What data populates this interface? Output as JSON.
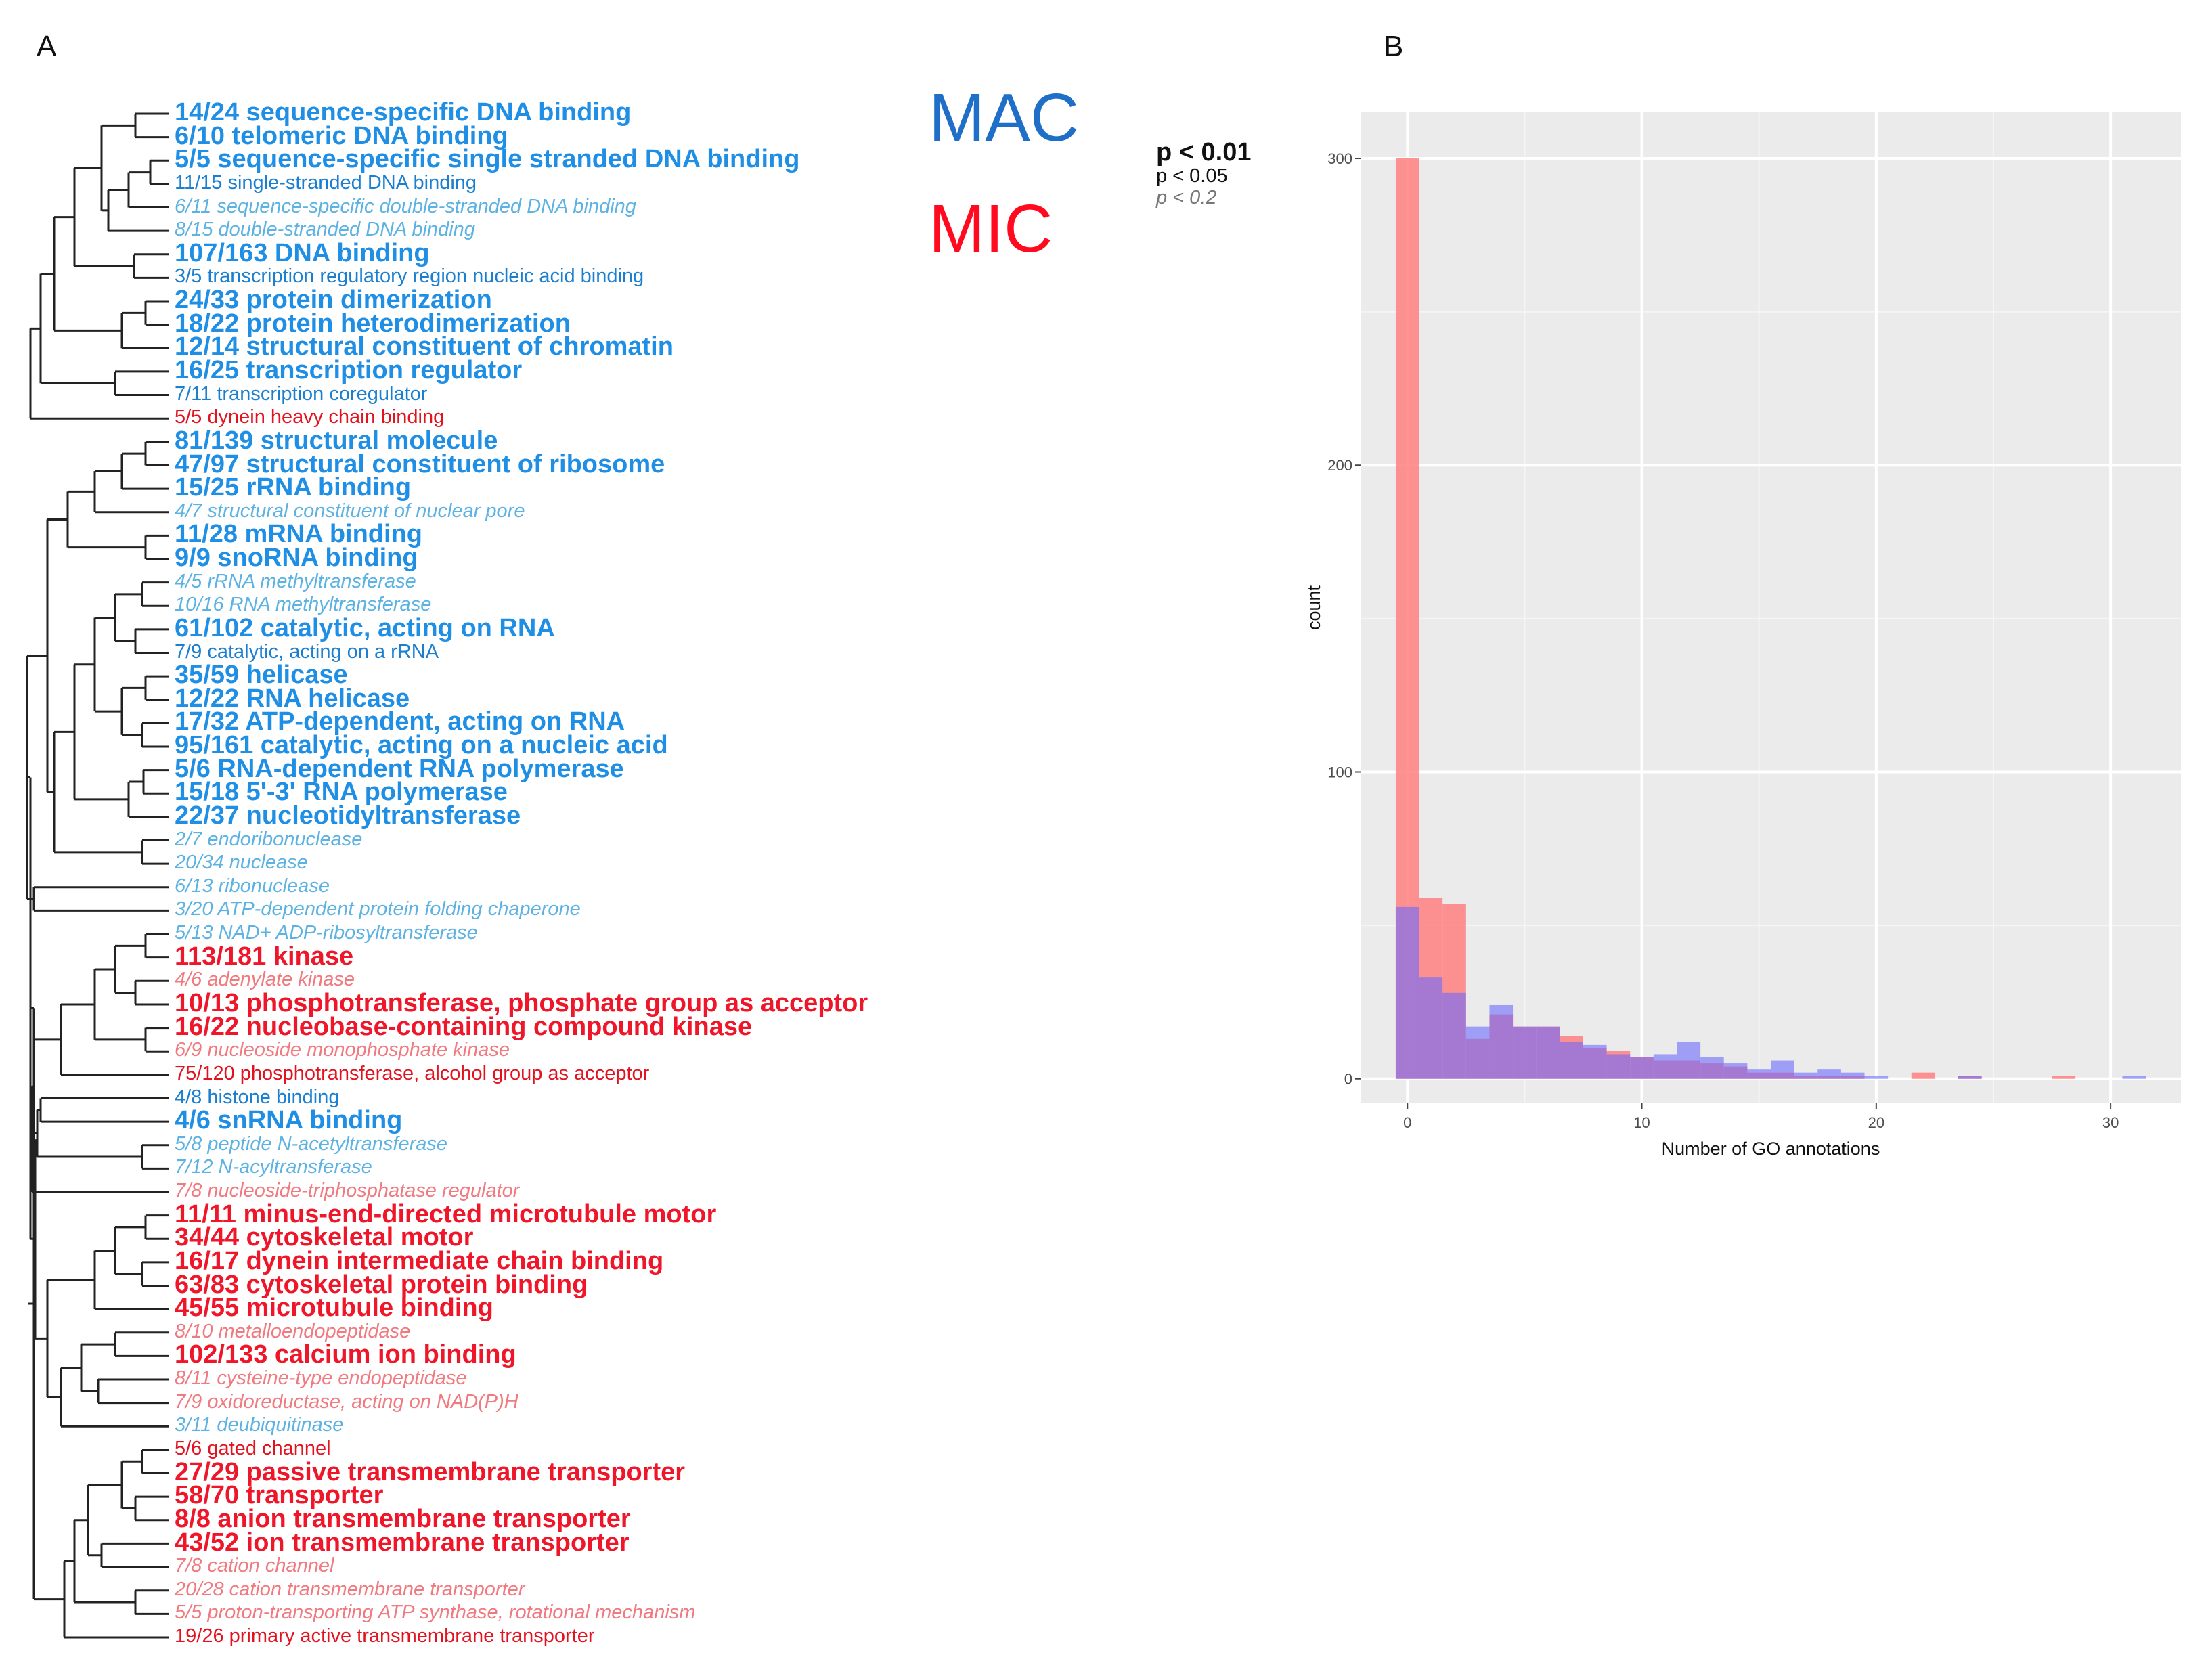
{
  "panel_a_label": "A",
  "panel_b_label": "B",
  "legend": {
    "mac": "MAC",
    "mic": "MIC",
    "mac_color": "#1f8fe6",
    "mic_color": "#f0162a",
    "p1": "p < 0.01",
    "p2": "p < 0.05",
    "p3": "p < 0.2"
  },
  "terms": [
    {
      "label": "14/24 sequence-specific DNA binding",
      "group": "MAC",
      "sig": 1
    },
    {
      "label": "6/10 telomeric DNA binding",
      "group": "MAC",
      "sig": 1
    },
    {
      "label": "5/5 sequence-specific single stranded DNA binding",
      "group": "MAC",
      "sig": 1
    },
    {
      "label": "11/15 single-stranded DNA binding",
      "group": "MAC",
      "sig": 2
    },
    {
      "label": "6/11 sequence-specific double-stranded DNA binding",
      "group": "MAC",
      "sig": 3
    },
    {
      "label": "8/15 double-stranded DNA binding",
      "group": "MAC",
      "sig": 3
    },
    {
      "label": "107/163 DNA binding",
      "group": "MAC",
      "sig": 1
    },
    {
      "label": "3/5 transcription regulatory region nucleic acid binding",
      "group": "MAC",
      "sig": 2
    },
    {
      "label": "24/33 protein dimerization",
      "group": "MAC",
      "sig": 1
    },
    {
      "label": "18/22 protein heterodimerization",
      "group": "MAC",
      "sig": 1
    },
    {
      "label": "12/14 structural constituent of chromatin",
      "group": "MAC",
      "sig": 1
    },
    {
      "label": "16/25 transcription regulator",
      "group": "MAC",
      "sig": 1
    },
    {
      "label": "7/11 transcription coregulator",
      "group": "MAC",
      "sig": 2
    },
    {
      "label": "5/5 dynein heavy chain binding",
      "group": "MIC",
      "sig": 2
    },
    {
      "label": "81/139 structural molecule",
      "group": "MAC",
      "sig": 1
    },
    {
      "label": "47/97 structural constituent of ribosome",
      "group": "MAC",
      "sig": 1
    },
    {
      "label": "15/25 rRNA binding",
      "group": "MAC",
      "sig": 1
    },
    {
      "label": "4/7 structural constituent of nuclear pore",
      "group": "MAC",
      "sig": 3
    },
    {
      "label": "11/28 mRNA binding",
      "group": "MAC",
      "sig": 1
    },
    {
      "label": "9/9 snoRNA binding",
      "group": "MAC",
      "sig": 1
    },
    {
      "label": "4/5 rRNA methyltransferase",
      "group": "MAC",
      "sig": 3
    },
    {
      "label": "10/16 RNA methyltransferase",
      "group": "MAC",
      "sig": 3
    },
    {
      "label": "61/102 catalytic, acting on RNA",
      "group": "MAC",
      "sig": 1
    },
    {
      "label": "7/9 catalytic, acting on a rRNA",
      "group": "MAC",
      "sig": 2
    },
    {
      "label": "35/59 helicase",
      "group": "MAC",
      "sig": 1
    },
    {
      "label": "12/22 RNA helicase",
      "group": "MAC",
      "sig": 1
    },
    {
      "label": "17/32 ATP-dependent, acting on RNA",
      "group": "MAC",
      "sig": 1
    },
    {
      "label": "95/161 catalytic, acting on a nucleic acid",
      "group": "MAC",
      "sig": 1
    },
    {
      "label": "5/6 RNA-dependent RNA polymerase",
      "group": "MAC",
      "sig": 1
    },
    {
      "label": "15/18 5'-3' RNA polymerase",
      "group": "MAC",
      "sig": 1
    },
    {
      "label": "22/37 nucleotidyltransferase",
      "group": "MAC",
      "sig": 1
    },
    {
      "label": "2/7 endoribonuclease",
      "group": "MAC",
      "sig": 3
    },
    {
      "label": "20/34 nuclease",
      "group": "MAC",
      "sig": 3
    },
    {
      "label": "6/13 ribonuclease",
      "group": "MAC",
      "sig": 3
    },
    {
      "label": "3/20 ATP-dependent protein folding chaperone",
      "group": "MAC",
      "sig": 3
    },
    {
      "label": "5/13 NAD+ ADP-ribosyltransferase",
      "group": "MAC",
      "sig": 3
    },
    {
      "label": "113/181 kinase",
      "group": "MIC",
      "sig": 1
    },
    {
      "label": "4/6 adenylate kinase",
      "group": "MIC",
      "sig": 3
    },
    {
      "label": "10/13 phosphotransferase, phosphate group as acceptor",
      "group": "MIC",
      "sig": 1
    },
    {
      "label": "16/22 nucleobase-containing compound kinase",
      "group": "MIC",
      "sig": 1
    },
    {
      "label": "6/9 nucleoside monophosphate kinase",
      "group": "MIC",
      "sig": 3
    },
    {
      "label": "75/120 phosphotransferase, alcohol group as acceptor",
      "group": "MIC",
      "sig": 2
    },
    {
      "label": "4/8 histone binding",
      "group": "MAC",
      "sig": 2
    },
    {
      "label": "4/6 snRNA binding",
      "group": "MAC",
      "sig": 1
    },
    {
      "label": "5/8 peptide N-acetyltransferase",
      "group": "MAC",
      "sig": 3
    },
    {
      "label": "7/12 N-acyltransferase",
      "group": "MAC",
      "sig": 3
    },
    {
      "label": "7/8 nucleoside-triphosphatase regulator",
      "group": "MIC",
      "sig": 3
    },
    {
      "label": "11/11 minus-end-directed microtubule motor",
      "group": "MIC",
      "sig": 1
    },
    {
      "label": "34/44 cytoskeletal motor",
      "group": "MIC",
      "sig": 1
    },
    {
      "label": "16/17 dynein intermediate chain binding",
      "group": "MIC",
      "sig": 1
    },
    {
      "label": "63/83 cytoskeletal protein binding",
      "group": "MIC",
      "sig": 1
    },
    {
      "label": "45/55 microtubule binding",
      "group": "MIC",
      "sig": 1
    },
    {
      "label": "8/10 metalloendopeptidase",
      "group": "MIC",
      "sig": 3
    },
    {
      "label": "102/133 calcium ion binding",
      "group": "MIC",
      "sig": 1
    },
    {
      "label": "8/11 cysteine-type endopeptidase",
      "group": "MIC",
      "sig": 3
    },
    {
      "label": "7/9 oxidoreductase, acting on NAD(P)H",
      "group": "MIC",
      "sig": 3
    },
    {
      "label": "3/11 deubiquitinase",
      "group": "MAC",
      "sig": 3
    },
    {
      "label": "5/6 gated channel",
      "group": "MIC",
      "sig": 2
    },
    {
      "label": "27/29 passive transmembrane transporter",
      "group": "MIC",
      "sig": 1
    },
    {
      "label": "58/70 transporter",
      "group": "MIC",
      "sig": 1
    },
    {
      "label": "8/8 anion transmembrane transporter",
      "group": "MIC",
      "sig": 1
    },
    {
      "label": "43/52 ion transmembrane transporter",
      "group": "MIC",
      "sig": 1
    },
    {
      "label": "7/8 cation channel",
      "group": "MIC",
      "sig": 3
    },
    {
      "label": "20/28 cation transmembrane transporter",
      "group": "MIC",
      "sig": 3
    },
    {
      "label": "5/5 proton-transporting ATP synthase, rotational mechanism",
      "group": "MIC",
      "sig": 3
    },
    {
      "label": "19/26 primary active transmembrane transporter",
      "group": "MIC",
      "sig": 2
    }
  ],
  "chart_data": {
    "type": "bar",
    "subtype": "overlaid histogram",
    "xlabel": "Number of GO annotations",
    "ylabel": "count",
    "xlim": [
      -2,
      33
    ],
    "ylim": [
      -8,
      315
    ],
    "x_ticks": [
      0,
      10,
      20,
      30
    ],
    "y_ticks": [
      0,
      100,
      200,
      300
    ],
    "bin_width": 1,
    "background": "#ebebeb",
    "grid": true,
    "series": [
      {
        "name": "MIC",
        "color": "#ff7f7f",
        "opacity": 0.85,
        "x": [
          0,
          1,
          2,
          3,
          4,
          5,
          6,
          7,
          8,
          9,
          10,
          11,
          12,
          13,
          14,
          15,
          16,
          17,
          18,
          19,
          20,
          21,
          22,
          23,
          24,
          25,
          26,
          27,
          28,
          29,
          30,
          31
        ],
        "values": [
          300,
          59,
          57,
          13,
          21,
          17,
          17,
          14,
          10,
          9,
          7,
          6,
          6,
          5,
          4,
          2,
          2,
          1,
          1,
          1,
          0,
          0,
          2,
          0,
          1,
          0,
          0,
          0,
          1,
          0,
          0,
          0
        ]
      },
      {
        "name": "MAC",
        "color": "#6a6aff",
        "opacity": 0.6,
        "x": [
          0,
          1,
          2,
          3,
          4,
          5,
          6,
          7,
          8,
          9,
          10,
          11,
          12,
          13,
          14,
          15,
          16,
          17,
          18,
          19,
          20,
          21,
          22,
          23,
          24,
          25,
          26,
          27,
          28,
          29,
          30,
          31
        ],
        "values": [
          56,
          33,
          28,
          17,
          24,
          17,
          17,
          12,
          11,
          8,
          7,
          8,
          12,
          7,
          5,
          3,
          6,
          2,
          3,
          2,
          1,
          0,
          0,
          0,
          1,
          0,
          0,
          0,
          0,
          0,
          0,
          1
        ]
      }
    ]
  }
}
